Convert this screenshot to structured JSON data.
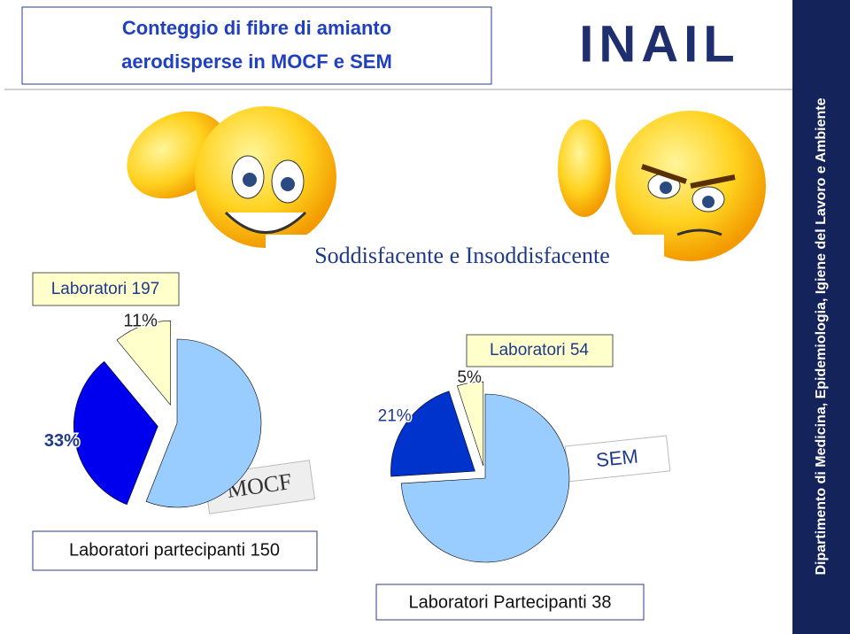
{
  "title_lines": [
    "Conteggio di fibre di amianto",
    "aerodisperse in MOCF e SEM"
  ],
  "logo": "INAIL",
  "subtitle": "Soddisfacente e Insoddisfacente",
  "sidebar": "Dipartimento di  Medicina, Epidemiologia, Igiene del Lavoro e Ambiente",
  "chart_data": [
    {
      "type": "pie",
      "values": [
        56,
        33,
        11
      ],
      "value_labels": [
        null,
        "33%",
        "11%"
      ],
      "colors": [
        "#99ccff",
        "#0000ee",
        "#ffffcc"
      ],
      "annotations": [
        "Laboratori 197",
        "MOCF",
        "Laboratori partecipanti 150"
      ]
    },
    {
      "type": "pie",
      "values": [
        74,
        21,
        5
      ],
      "value_labels": [
        null,
        "21%",
        "5%"
      ],
      "colors": [
        "#99ccff",
        "#0033cc",
        "#ffffcc"
      ],
      "annotations": [
        "Laboratori 54",
        "SEM",
        "Laboratori Partecipanti 38"
      ]
    }
  ]
}
